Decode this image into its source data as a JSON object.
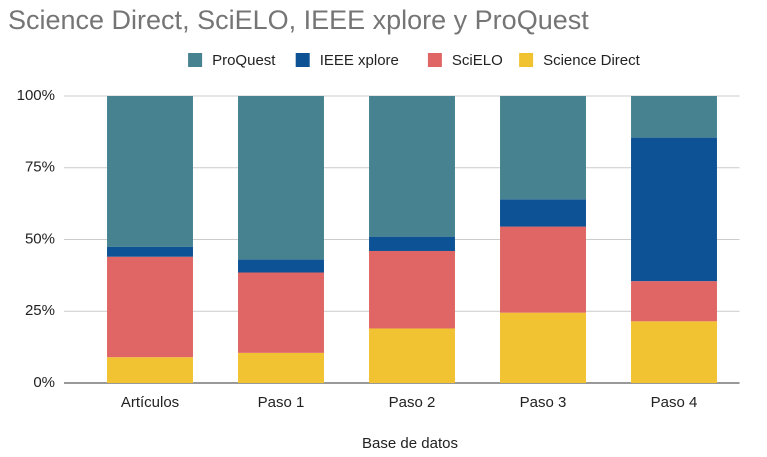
{
  "chart_data": {
    "type": "stacked_bar_100",
    "title": "Science Direct, SciELO, IEEE xplore y ProQuest",
    "x_label": "Base de datos",
    "categories": [
      "Artículos",
      "Paso 1",
      "Paso 2",
      "Paso 3",
      "Paso 4"
    ],
    "series": [
      {
        "name": "ProQuest",
        "color": "#46828f",
        "values": [
          52.5,
          57,
          49,
          36,
          14.5
        ]
      },
      {
        "name": "IEEE xplore",
        "color": "#0d5294",
        "values": [
          3.5,
          4.5,
          5,
          9.5,
          50
        ]
      },
      {
        "name": "SciELO",
        "color": "#e06666",
        "values": [
          35,
          28,
          27,
          30,
          14
        ]
      },
      {
        "name": "Science Direct",
        "color": "#f1c232",
        "values": [
          9,
          10.5,
          19,
          24.5,
          21.5
        ]
      }
    ],
    "ylim": [
      0,
      100
    ],
    "yticks": [
      {
        "value": 0,
        "label": "0%"
      },
      {
        "value": 25,
        "label": "25%"
      },
      {
        "value": 50,
        "label": "50%"
      },
      {
        "value": 75,
        "label": "75%"
      },
      {
        "value": 100,
        "label": "100%"
      }
    ],
    "grid": true,
    "legend": "top"
  }
}
